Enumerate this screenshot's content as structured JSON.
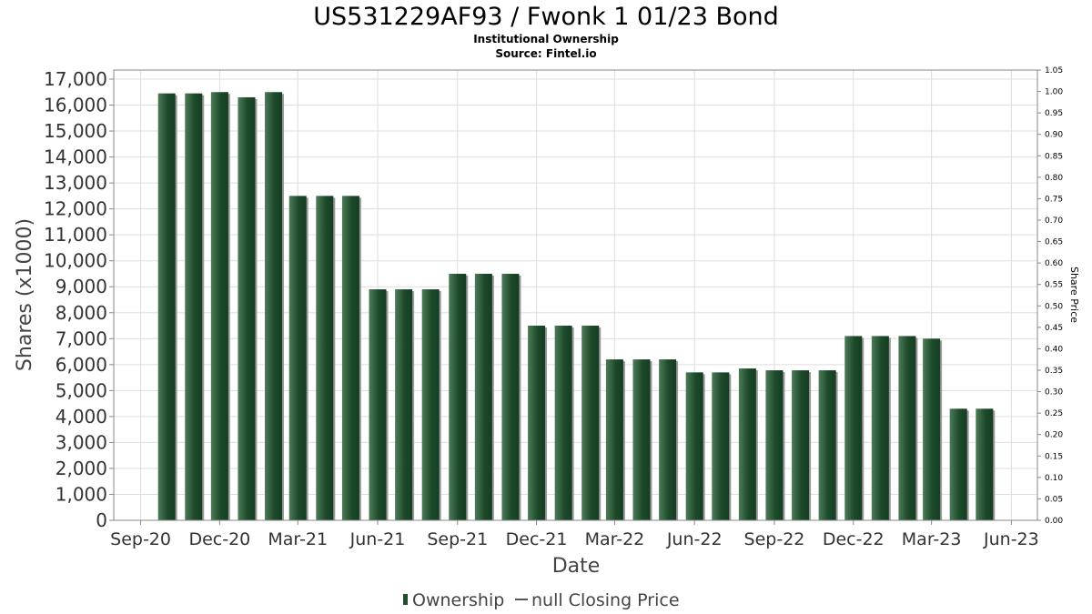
{
  "chart_data": {
    "type": "bar",
    "title": "US531229AF93 / Fwonk 1 01/23 Bond",
    "subtitle": "Institutional Ownership",
    "source": "Source: Fintel.io",
    "xlabel": "Date",
    "ylabel": "Shares (x1000)",
    "y2label": "Share Price",
    "ylim": [
      0,
      17350
    ],
    "y2lim": [
      0,
      1.05
    ],
    "grid": true,
    "legend_position": "bottom",
    "y_ticks": [
      0,
      1000,
      2000,
      3000,
      4000,
      5000,
      6000,
      7000,
      8000,
      9000,
      10000,
      11000,
      12000,
      13000,
      14000,
      15000,
      16000,
      17000
    ],
    "y_tick_labels": [
      "0",
      "1,000",
      "2,000",
      "3,000",
      "4,000",
      "5,000",
      "6,000",
      "7,000",
      "8,000",
      "9,000",
      "10,000",
      "11,000",
      "12,000",
      "13,000",
      "14,000",
      "15,000",
      "16,000",
      "17,000"
    ],
    "y2_tick_labels": [
      "0.00",
      "0.05",
      "0.10",
      "0.15",
      "0.20",
      "0.25",
      "0.30",
      "0.35",
      "0.40",
      "0.45",
      "0.50",
      "0.55",
      "0.60",
      "0.65",
      "0.70",
      "0.75",
      "0.80",
      "0.85",
      "0.90",
      "0.95",
      "1.00",
      "1.05"
    ],
    "x_range": [
      "2020-08-01",
      "2023-07-01"
    ],
    "x_ticks": [
      {
        "date": "2020-09-01",
        "label": "Sep-20"
      },
      {
        "date": "2020-12-01",
        "label": "Dec-20"
      },
      {
        "date": "2021-03-01",
        "label": "Mar-21"
      },
      {
        "date": "2021-06-01",
        "label": "Jun-21"
      },
      {
        "date": "2021-09-01",
        "label": "Sep-21"
      },
      {
        "date": "2021-12-01",
        "label": "Dec-21"
      },
      {
        "date": "2022-03-01",
        "label": "Mar-22"
      },
      {
        "date": "2022-06-01",
        "label": "Jun-22"
      },
      {
        "date": "2022-09-01",
        "label": "Sep-22"
      },
      {
        "date": "2022-12-01",
        "label": "Dec-22"
      },
      {
        "date": "2023-03-01",
        "label": "Mar-23"
      },
      {
        "date": "2023-06-01",
        "label": "Jun-23"
      }
    ],
    "series": [
      {
        "name": "Ownership",
        "color": "#1e4d2b",
        "points": [
          {
            "x": "2020-10-01",
            "y": 16450
          },
          {
            "x": "2020-11-01",
            "y": 16450
          },
          {
            "x": "2020-12-01",
            "y": 16500
          },
          {
            "x": "2021-01-01",
            "y": 16300
          },
          {
            "x": "2021-02-01",
            "y": 16500
          },
          {
            "x": "2021-03-01",
            "y": 12500
          },
          {
            "x": "2021-04-01",
            "y": 12500
          },
          {
            "x": "2021-05-01",
            "y": 12500
          },
          {
            "x": "2021-06-01",
            "y": 8900
          },
          {
            "x": "2021-07-01",
            "y": 8900
          },
          {
            "x": "2021-08-01",
            "y": 8900
          },
          {
            "x": "2021-09-01",
            "y": 9500
          },
          {
            "x": "2021-10-01",
            "y": 9500
          },
          {
            "x": "2021-11-01",
            "y": 9500
          },
          {
            "x": "2021-12-01",
            "y": 7500
          },
          {
            "x": "2022-01-01",
            "y": 7500
          },
          {
            "x": "2022-02-01",
            "y": 7500
          },
          {
            "x": "2022-03-01",
            "y": 6200
          },
          {
            "x": "2022-04-01",
            "y": 6200
          },
          {
            "x": "2022-05-01",
            "y": 6200
          },
          {
            "x": "2022-06-01",
            "y": 5700
          },
          {
            "x": "2022-07-01",
            "y": 5700
          },
          {
            "x": "2022-08-01",
            "y": 5850
          },
          {
            "x": "2022-09-01",
            "y": 5780
          },
          {
            "x": "2022-10-01",
            "y": 5780
          },
          {
            "x": "2022-11-01",
            "y": 5780
          },
          {
            "x": "2022-12-01",
            "y": 7100
          },
          {
            "x": "2023-01-01",
            "y": 7100
          },
          {
            "x": "2023-02-01",
            "y": 7100
          },
          {
            "x": "2023-03-01",
            "y": 7000
          },
          {
            "x": "2023-04-01",
            "y": 4300
          },
          {
            "x": "2023-05-01",
            "y": 4300
          }
        ]
      }
    ],
    "legend": [
      {
        "label": "Ownership",
        "marker": "bar",
        "color": "#1e4d2b"
      },
      {
        "label": "null Closing Price",
        "marker": "line",
        "color": "#555555"
      }
    ]
  }
}
